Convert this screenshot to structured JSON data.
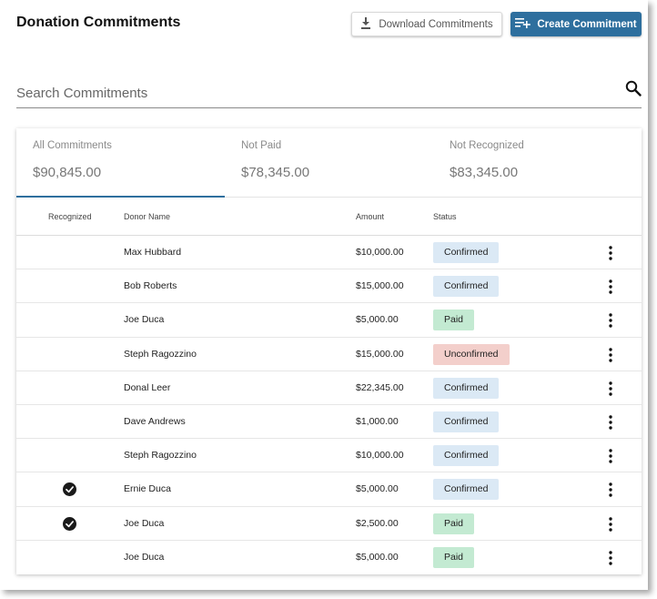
{
  "page": {
    "title": "Donation Commitments",
    "download_label": "Download Commitments",
    "create_label": "Create Commitment",
    "search_placeholder": "Search Commitments"
  },
  "summary_tabs": [
    {
      "label": "All Commitments",
      "value": "$90,845.00",
      "active": true
    },
    {
      "label": "Not Paid",
      "value": "$78,345.00",
      "active": false
    },
    {
      "label": "Not Recognized",
      "value": "$83,345.00",
      "active": false
    }
  ],
  "table": {
    "headers": {
      "recognized": "Recognized",
      "donor": "Donor Name",
      "amount": "Amount",
      "status": "Status"
    },
    "rows": [
      {
        "recognized": false,
        "donor": "Max Hubbard",
        "amount": "$10,000.00",
        "status": "Confirmed"
      },
      {
        "recognized": false,
        "donor": "Bob Roberts",
        "amount": "$15,000.00",
        "status": "Confirmed"
      },
      {
        "recognized": false,
        "donor": "Joe Duca",
        "amount": "$5,000.00",
        "status": "Paid"
      },
      {
        "recognized": false,
        "donor": "Steph Ragozzino",
        "amount": "$15,000.00",
        "status": "Unconfirmed"
      },
      {
        "recognized": false,
        "donor": "Donal Leer",
        "amount": "$22,345.00",
        "status": "Confirmed"
      },
      {
        "recognized": false,
        "donor": "Dave Andrews",
        "amount": "$1,000.00",
        "status": "Confirmed"
      },
      {
        "recognized": false,
        "donor": "Steph Ragozzino",
        "amount": "$10,000.00",
        "status": "Confirmed"
      },
      {
        "recognized": true,
        "donor": "Ernie Duca",
        "amount": "$5,000.00",
        "status": "Confirmed"
      },
      {
        "recognized": true,
        "donor": "Joe Duca",
        "amount": "$2,500.00",
        "status": "Paid"
      },
      {
        "recognized": false,
        "donor": "Joe Duca",
        "amount": "$5,000.00",
        "status": "Paid"
      }
    ]
  },
  "colors": {
    "accent": "#2e6f9e",
    "confirmed": "#dbe9f5",
    "paid": "#c3ead2",
    "unconfirmed": "#f3cfcb"
  },
  "icons": {
    "download": "download-icon",
    "create": "playlist-add-icon",
    "search": "search-icon",
    "check": "check-circle-icon",
    "more": "more-vertical-icon"
  }
}
